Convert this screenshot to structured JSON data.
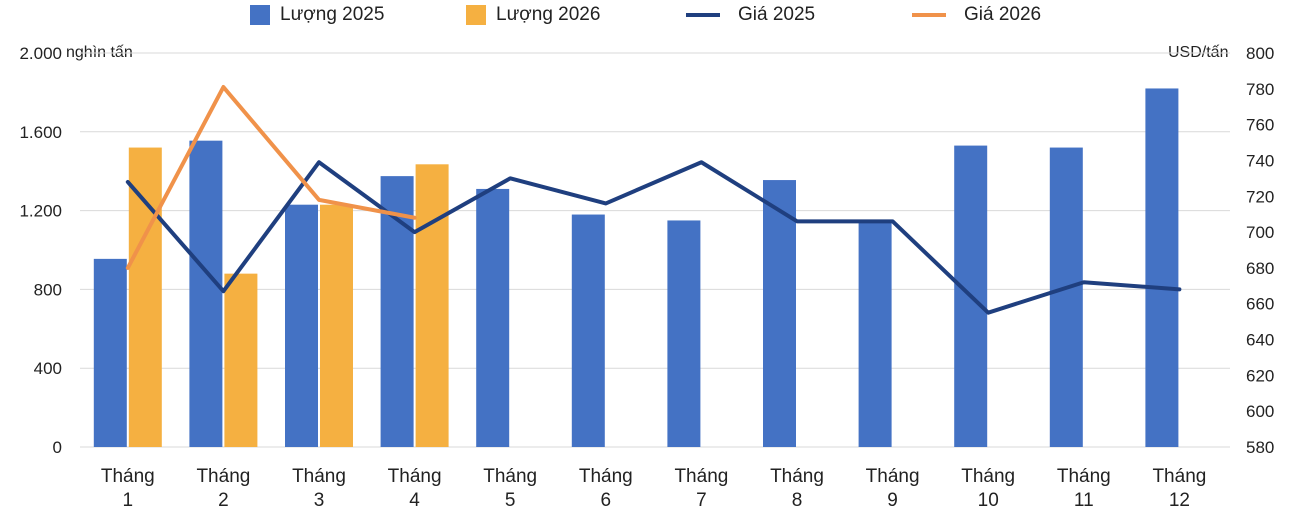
{
  "colors": {
    "qty_2025": "#4472C4",
    "qty_2026": "#F5B041",
    "price_2025": "#1F3F7F",
    "price_2026": "#F0924A",
    "grid": "#D9D9D9"
  },
  "left_unit": "nghìn tấn",
  "right_unit": "USD/tấn",
  "chart_data": {
    "type": "bar",
    "categories": [
      [
        "Tháng",
        "1"
      ],
      [
        "Tháng",
        "2"
      ],
      [
        "Tháng",
        "3"
      ],
      [
        "Tháng",
        "4"
      ],
      [
        "Tháng",
        "5"
      ],
      [
        "Tháng",
        "6"
      ],
      [
        "Tháng",
        "7"
      ],
      [
        "Tháng",
        "8"
      ],
      [
        "Tháng",
        "9"
      ],
      [
        "Tháng",
        "10"
      ],
      [
        "Tháng",
        "11"
      ],
      [
        "Tháng",
        "12"
      ]
    ],
    "y_left": {
      "ylim": [
        0,
        2000
      ],
      "ticks": [
        0,
        400,
        800,
        1200,
        1600,
        2000
      ],
      "tick_labels": [
        "0",
        "400",
        "800",
        "1.200",
        "1.600",
        "2.000"
      ]
    },
    "y_right": {
      "ylim": [
        580,
        800
      ],
      "ticks": [
        580,
        600,
        620,
        640,
        660,
        680,
        700,
        720,
        740,
        760,
        780,
        800
      ],
      "tick_labels": [
        "580",
        "600",
        "620",
        "640",
        "660",
        "680",
        "700",
        "720",
        "740",
        "760",
        "780",
        "800"
      ]
    },
    "grid": true,
    "legend_position": "top",
    "bar_series": [
      {
        "name": "Lượng 2025",
        "values": [
          955,
          1555,
          1230,
          1375,
          1310,
          1180,
          1150,
          1355,
          1150,
          1530,
          1520,
          1820
        ]
      },
      {
        "name": "Lượng 2026",
        "values": [
          1520,
          880,
          1230,
          1435
        ]
      }
    ],
    "line_series": [
      {
        "name": "Giá 2025",
        "axis": "right",
        "values": [
          728,
          667,
          739,
          700,
          730,
          716,
          739,
          706,
          706,
          655,
          672,
          668
        ]
      },
      {
        "name": "Giá 2026",
        "axis": "right",
        "values": [
          680,
          781,
          718,
          708
        ]
      }
    ]
  }
}
